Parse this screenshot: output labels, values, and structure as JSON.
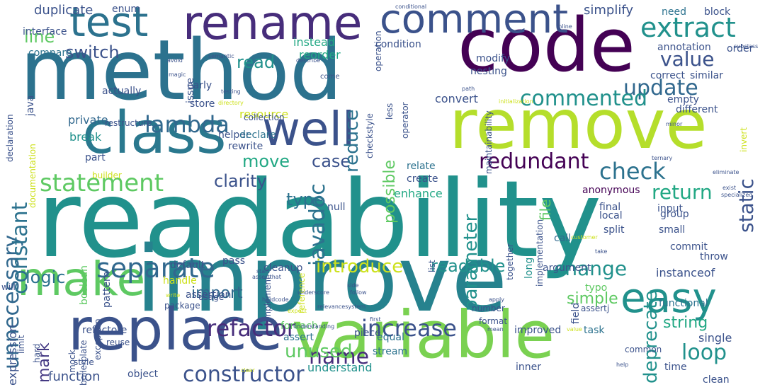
{
  "colors": {
    "background": "#ffffff",
    "palette": [
      "#440154",
      "#472d7b",
      "#3b528b",
      "#2c728e",
      "#21918c",
      "#28ae80",
      "#5ec962",
      "#addc30",
      "#fde725"
    ]
  },
  "words": [
    {
      "text": "readability",
      "color": "#21918c"
    },
    {
      "text": "improve",
      "color": "#26828e"
    },
    {
      "text": "method",
      "color": "#2c728e"
    },
    {
      "text": "code",
      "color": "#440154"
    },
    {
      "text": "variable",
      "color": "#7ad151"
    },
    {
      "text": "remove",
      "color": "#b5de2b"
    },
    {
      "text": "replace",
      "color": "#3b528b"
    },
    {
      "text": "class",
      "color": "#2a788e"
    },
    {
      "text": "rename",
      "color": "#472d7b"
    },
    {
      "text": "comment",
      "color": "#3b528b"
    },
    {
      "text": "test",
      "color": "#2c728e"
    },
    {
      "text": "make",
      "color": "#5ec962"
    },
    {
      "text": "well",
      "color": "#3b528b"
    },
    {
      "text": "easy",
      "color": "#21918c"
    },
    {
      "text": "separate",
      "color": "#31688e"
    },
    {
      "text": "unnecessary",
      "color": "#31688e"
    },
    {
      "text": "extract",
      "color": "#21918c"
    },
    {
      "text": "javadoc",
      "color": "#2c728e"
    },
    {
      "text": "statement",
      "color": "#5ec962"
    },
    {
      "text": "update",
      "color": "#31688e"
    },
    {
      "text": "value",
      "color": "#3b528b"
    },
    {
      "text": "commented",
      "color": "#21918c"
    },
    {
      "text": "lambda",
      "color": "#31688e"
    },
    {
      "text": "check",
      "color": "#2c728e"
    },
    {
      "text": "constant",
      "color": "#2c728e"
    },
    {
      "text": "increase",
      "color": "#3b528b"
    },
    {
      "text": "refactor",
      "color": "#472d7b"
    },
    {
      "text": "name",
      "color": "#472d7b"
    },
    {
      "text": "change",
      "color": "#21918c"
    },
    {
      "text": "introduce",
      "color": "#cde11d"
    },
    {
      "text": "constructor",
      "color": "#3b528b"
    },
    {
      "text": "loop",
      "color": "#21918c"
    },
    {
      "text": "redundant",
      "color": "#440154"
    },
    {
      "text": "return",
      "color": "#22a884"
    },
    {
      "text": "deprecate",
      "color": "#21918c"
    },
    {
      "text": "static",
      "color": "#3b528b"
    },
    {
      "text": "parameter",
      "color": "#21918c"
    },
    {
      "text": "readable",
      "color": "#21918c"
    },
    {
      "text": "clarity",
      "color": "#3b528b"
    },
    {
      "text": "type",
      "color": "#2c728e"
    },
    {
      "text": "move",
      "color": "#22a884"
    },
    {
      "text": "case",
      "color": "#3b528b"
    },
    {
      "text": "reduce",
      "color": "#2c728e"
    },
    {
      "text": "possible",
      "color": "#5ec962"
    },
    {
      "text": "switch",
      "color": "#3b528b"
    },
    {
      "text": "line",
      "color": "#5ec962"
    },
    {
      "text": "read",
      "color": "#21918c"
    },
    {
      "text": "unused",
      "color": "#5ec962"
    },
    {
      "text": "logic",
      "color": "#2c728e"
    },
    {
      "text": "import",
      "color": "#31688e"
    },
    {
      "text": "string",
      "color": "#22a884"
    },
    {
      "text": "simple",
      "color": "#5ec962"
    },
    {
      "text": "mark",
      "color": "#443983"
    },
    {
      "text": "file",
      "color": "#5ec962"
    },
    {
      "text": "simplify",
      "color": "#3b528b"
    },
    {
      "text": "duplicate",
      "color": "#3b528b"
    },
    {
      "text": "enum",
      "color": "#3b528b"
    },
    {
      "text": "need",
      "color": "#2c728e"
    },
    {
      "text": "block",
      "color": "#3b528b"
    },
    {
      "text": "instead",
      "color": "#22a884"
    },
    {
      "text": "reorder",
      "color": "#22a884"
    },
    {
      "text": "condition",
      "color": "#3b528b"
    },
    {
      "text": "convert",
      "color": "#3b528b"
    },
    {
      "text": "resource",
      "color": "#cde11d"
    },
    {
      "text": "private",
      "color": "#31688e"
    },
    {
      "text": "break",
      "color": "#21918c"
    },
    {
      "text": "helper",
      "color": "#3b528b"
    },
    {
      "text": "rewrite",
      "color": "#3b528b"
    },
    {
      "text": "declare",
      "color": "#2c728e"
    },
    {
      "text": "relate",
      "color": "#2c728e"
    },
    {
      "text": "create",
      "color": "#3b528b"
    },
    {
      "text": "enhance",
      "color": "#22a884"
    },
    {
      "text": "null",
      "color": "#3b528b"
    },
    {
      "text": "anonymous",
      "color": "#440154"
    },
    {
      "text": "split",
      "color": "#3b528b"
    },
    {
      "text": "local",
      "color": "#3b528b"
    },
    {
      "text": "small",
      "color": "#3b528b"
    },
    {
      "text": "call",
      "color": "#31688e"
    },
    {
      "text": "long",
      "color": "#21918c"
    },
    {
      "text": "instanceof",
      "color": "#3b528b"
    },
    {
      "text": "argument",
      "color": "#3b528b"
    },
    {
      "text": "functional",
      "color": "#2c728e"
    },
    {
      "text": "field",
      "color": "#3b528b"
    },
    {
      "text": "refactore",
      "color": "#3b528b"
    },
    {
      "text": "improved",
      "color": "#3b528b"
    },
    {
      "text": "task",
      "color": "#2c728e"
    },
    {
      "text": "understand",
      "color": "#21918c"
    },
    {
      "text": "function",
      "color": "#3b528b"
    },
    {
      "text": "object",
      "color": "#3b528b"
    },
    {
      "text": "inner",
      "color": "#3b528b"
    },
    {
      "text": "expression",
      "color": "#3b528b"
    },
    {
      "text": "single",
      "color": "#3b528b"
    },
    {
      "text": "clean",
      "color": "#3b528b"
    },
    {
      "text": "time",
      "color": "#3b528b"
    },
    {
      "text": "stream",
      "color": "#2c728e"
    },
    {
      "text": "equal",
      "color": "#2c728e"
    },
    {
      "text": "piece",
      "color": "#3b528b"
    },
    {
      "text": "assert",
      "color": "#2c728e"
    },
    {
      "text": "foreach",
      "color": "#5ec962"
    },
    {
      "text": "cleanup",
      "color": "#3b528b"
    },
    {
      "text": "pass",
      "color": "#3b528b"
    },
    {
      "text": "throw",
      "color": "#3b528b"
    },
    {
      "text": "typo",
      "color": "#5ec962"
    },
    {
      "text": "commit",
      "color": "#3b528b"
    },
    {
      "text": "group",
      "color": "#3b528b"
    },
    {
      "text": "input",
      "color": "#3b528b"
    },
    {
      "text": "final",
      "color": "#3b528b"
    },
    {
      "text": "interface",
      "color": "#3b528b"
    },
    {
      "text": "compare",
      "color": "#2c728e"
    },
    {
      "text": "java",
      "color": "#3b528b"
    },
    {
      "text": "issue",
      "color": "#3b528b"
    },
    {
      "text": "early",
      "color": "#3b528b"
    },
    {
      "text": "store",
      "color": "#3b528b"
    },
    {
      "text": "actually",
      "color": "#3b528b"
    },
    {
      "text": "modify",
      "color": "#3b528b"
    },
    {
      "text": "nesting",
      "color": "#3b528b"
    },
    {
      "text": "order",
      "color": "#3b528b"
    },
    {
      "text": "annotation",
      "color": "#3b528b"
    },
    {
      "text": "correct",
      "color": "#3b528b"
    },
    {
      "text": "similar",
      "color": "#3b528b"
    },
    {
      "text": "empty",
      "color": "#3b528b"
    },
    {
      "text": "different",
      "color": "#3b528b"
    },
    {
      "text": "declaration",
      "color": "#3b528b"
    },
    {
      "text": "documentation",
      "color": "#cde11d"
    },
    {
      "text": "part",
      "color": "#3b528b"
    },
    {
      "text": "builder",
      "color": "#cde11d"
    },
    {
      "text": "boolean",
      "color": "#5ec962"
    },
    {
      "text": "pattern",
      "color": "#3b528b"
    },
    {
      "text": "default",
      "color": "#3b528b"
    },
    {
      "text": "assertion",
      "color": "#3b528b"
    },
    {
      "text": "exception",
      "color": "#3b528b"
    },
    {
      "text": "limit",
      "color": "#3b528b"
    },
    {
      "text": "hard",
      "color": "#3b528b"
    },
    {
      "text": "handle",
      "color": "#cde11d"
    },
    {
      "text": "package",
      "color": "#3b528b"
    },
    {
      "text": "will",
      "color": "#3b528b"
    },
    {
      "text": "reuse",
      "color": "#3b528b"
    },
    {
      "text": "usage",
      "color": "#3b528b"
    },
    {
      "text": "style",
      "color": "#3b528b"
    },
    {
      "text": "mock",
      "color": "#3b528b"
    },
    {
      "text": "boilerplate",
      "color": "#3b528b"
    },
    {
      "text": "implement",
      "color": "#3b528b"
    },
    {
      "text": "reference",
      "color": "#cde11d"
    },
    {
      "text": "together",
      "color": "#3b528b"
    },
    {
      "text": "implementation",
      "color": "#3b528b"
    },
    {
      "text": "list",
      "color": "#3b528b"
    },
    {
      "text": "number",
      "color": "#3b528b"
    },
    {
      "text": "format",
      "color": "#3b528b"
    },
    {
      "text": "common",
      "color": "#3b528b"
    },
    {
      "text": "assertj",
      "color": "#3b528b"
    },
    {
      "text": "collection",
      "color": "#3b528b"
    },
    {
      "text": "checkstyle",
      "color": "#3b528b"
    },
    {
      "text": "less",
      "color": "#3b528b"
    },
    {
      "text": "operation",
      "color": "#3b528b"
    },
    {
      "text": "operator",
      "color": "#3b528b"
    },
    {
      "text": "maintainability",
      "color": "#3b528b"
    },
    {
      "text": "invert",
      "color": "#cde11d"
    },
    {
      "text": "restructure",
      "color": "#3b528b"
    },
    {
      "text": "conditional",
      "color": "#3b528b"
    },
    {
      "text": "avoid",
      "color": "#3b528b"
    },
    {
      "text": "inline",
      "color": "#3b528b"
    },
    {
      "text": "subclass",
      "color": "#3b528b"
    },
    {
      "text": "semantic",
      "color": "#3b528b"
    },
    {
      "text": "describe",
      "color": "#3b528b"
    },
    {
      "text": "magic",
      "color": "#3b528b"
    },
    {
      "text": "come",
      "color": "#3b528b"
    },
    {
      "text": "testing",
      "color": "#3b528b"
    },
    {
      "text": "directory",
      "color": "#cde11d"
    },
    {
      "text": "path",
      "color": "#3b528b"
    },
    {
      "text": "initialization",
      "color": "#cde11d"
    },
    {
      "text": "minor",
      "color": "#3b528b"
    },
    {
      "text": "ternary",
      "color": "#3b528b"
    },
    {
      "text": "eliminate",
      "color": "#3b528b"
    },
    {
      "text": "exist",
      "color": "#3b528b"
    },
    {
      "text": "specialized",
      "color": "#3b528b"
    },
    {
      "text": "take",
      "color": "#3b528b"
    },
    {
      "text": "customer",
      "color": "#cde11d"
    },
    {
      "text": "start",
      "color": "#3b528b"
    },
    {
      "text": "assertthat",
      "color": "#3b528b"
    },
    {
      "text": "write",
      "color": "#cde11d"
    },
    {
      "text": "underscore",
      "color": "#3b528b"
    },
    {
      "text": "hardcode",
      "color": "#3b528b"
    },
    {
      "text": "apply",
      "color": "#3b528b"
    },
    {
      "text": "side",
      "color": "#3b528b"
    },
    {
      "text": "follow",
      "color": "#3b528b"
    },
    {
      "text": "relevancesystem",
      "color": "#3b528b"
    },
    {
      "text": "first",
      "color": "#3b528b"
    },
    {
      "text": "understanding",
      "color": "#3b528b"
    },
    {
      "text": "clear",
      "color": "#cde11d"
    },
    {
      "text": "expect",
      "color": "#cde11d"
    },
    {
      "text": "mean",
      "color": "#3b528b"
    },
    {
      "text": "value",
      "color": "#cde11d"
    },
    {
      "text": "help",
      "color": "#3b528b"
    }
  ]
}
